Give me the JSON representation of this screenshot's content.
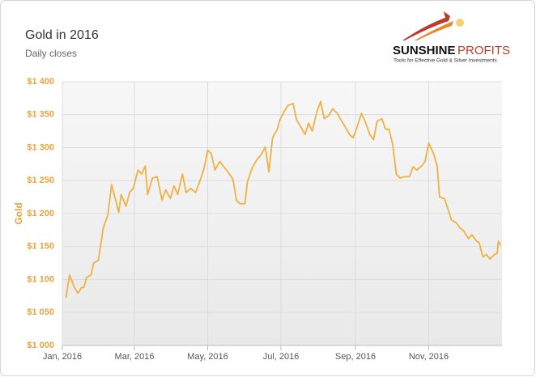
{
  "chart_data": {
    "type": "line",
    "title": "Gold in 2016",
    "subtitle": "Daily closes",
    "ylabel": "Gold",
    "color": "#f0b143",
    "grid": true,
    "xlim": [
      0,
      366
    ],
    "xticks": [
      {
        "value": 0,
        "label": "Jan, 2016"
      },
      {
        "value": 60,
        "label": "Mar, 2016"
      },
      {
        "value": 121,
        "label": "May, 2016"
      },
      {
        "value": 182,
        "label": "Jul, 2016"
      },
      {
        "value": 244,
        "label": "Sep, 2016"
      },
      {
        "value": 305,
        "label": "Nov, 2016"
      }
    ],
    "ylim": [
      1000,
      1400
    ],
    "yticks": [
      {
        "value": 1000,
        "label": "$1 000"
      },
      {
        "value": 1050,
        "label": "$1 050"
      },
      {
        "value": 1100,
        "label": "$1 100"
      },
      {
        "value": 1150,
        "label": "$1 150"
      },
      {
        "value": 1200,
        "label": "$1 200"
      },
      {
        "value": 1250,
        "label": "$1 250"
      },
      {
        "value": 1300,
        "label": "$1 300"
      },
      {
        "value": 1350,
        "label": "$1 350"
      },
      {
        "value": 1400,
        "label": "$1 400"
      }
    ],
    "x": [
      3,
      6,
      10,
      13,
      16,
      18,
      20,
      24,
      26,
      30,
      34,
      38,
      41,
      44,
      47,
      49,
      53,
      56,
      59,
      63,
      66,
      69,
      71,
      75,
      79,
      83,
      86,
      90,
      93,
      96,
      100,
      103,
      107,
      111,
      115,
      118,
      121,
      124,
      127,
      131,
      134,
      138,
      142,
      145,
      148,
      152,
      154,
      158,
      162,
      165,
      169,
      172,
      175,
      179,
      181,
      185,
      188,
      192,
      195,
      198,
      202,
      205,
      208,
      212,
      215,
      218,
      222,
      225,
      229,
      232,
      235,
      239,
      242,
      245,
      249,
      252,
      256,
      259,
      262,
      266,
      269,
      272,
      275,
      278,
      281,
      285,
      289,
      292,
      295,
      299,
      302,
      305,
      309,
      312,
      314,
      318,
      321,
      324,
      328,
      331,
      334,
      338,
      341,
      345,
      347,
      350,
      353,
      356,
      360,
      362,
      363,
      365
    ],
    "values": [
      1072,
      1107,
      1088,
      1079,
      1088,
      1088,
      1103,
      1107,
      1125,
      1129,
      1177,
      1199,
      1244,
      1223,
      1202,
      1229,
      1211,
      1232,
      1238,
      1266,
      1260,
      1272,
      1229,
      1254,
      1256,
      1220,
      1236,
      1223,
      1242,
      1229,
      1260,
      1232,
      1238,
      1232,
      1252,
      1269,
      1296,
      1291,
      1266,
      1279,
      1272,
      1263,
      1252,
      1220,
      1215,
      1215,
      1248,
      1269,
      1282,
      1288,
      1301,
      1263,
      1315,
      1328,
      1342,
      1356,
      1364,
      1367,
      1342,
      1333,
      1320,
      1337,
      1325,
      1355,
      1370,
      1344,
      1349,
      1359,
      1352,
      1342,
      1333,
      1320,
      1315,
      1329,
      1352,
      1340,
      1320,
      1312,
      1340,
      1344,
      1328,
      1328,
      1305,
      1260,
      1254,
      1256,
      1256,
      1271,
      1266,
      1272,
      1279,
      1307,
      1291,
      1272,
      1225,
      1223,
      1207,
      1190,
      1186,
      1178,
      1174,
      1162,
      1168,
      1158,
      1156,
      1134,
      1138,
      1131,
      1138,
      1140,
      1158,
      1152
    ]
  },
  "logo": {
    "brand": "SUNSHINE",
    "brand2": "PROFITS",
    "tagline": "Tools for Effective Gold & Silver Investments"
  }
}
